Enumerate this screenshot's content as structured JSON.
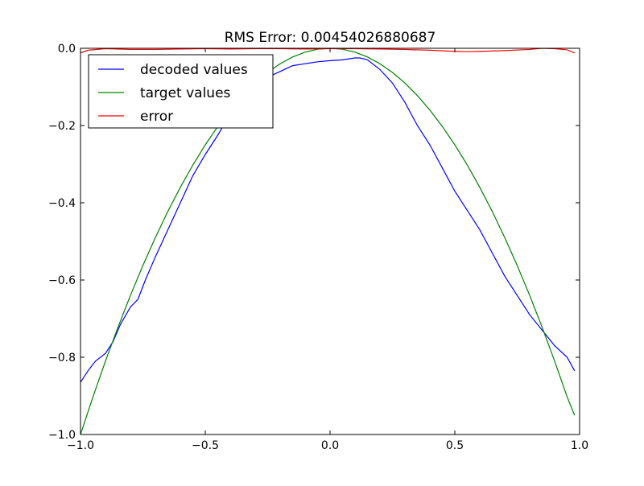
{
  "chart_data": {
    "type": "line",
    "title": "RMS Error: 0.00454026880687",
    "xlabel": "",
    "ylabel": "",
    "xlim": [
      -1.0,
      1.0
    ],
    "ylim": [
      -1.0,
      0.0
    ],
    "grid": false,
    "legend_position": "upper-left",
    "x_ticks": [
      -1.0,
      -0.5,
      0.0,
      0.5,
      1.0
    ],
    "x_tick_labels": [
      "−1.0",
      "−0.5",
      "0.0",
      "0.5",
      "1.0"
    ],
    "y_ticks": [
      0.0,
      -0.2,
      -0.4,
      -0.6,
      -0.8,
      -1.0
    ],
    "y_tick_labels": [
      "0.0",
      "−0.2",
      "−0.4",
      "−0.6",
      "−0.8",
      "−1.0"
    ],
    "series": [
      {
        "name": "decoded values",
        "color": "#0000ff",
        "x": [
          -1.0,
          -0.97,
          -0.94,
          -0.9,
          -0.87,
          -0.84,
          -0.8,
          -0.77,
          -0.74,
          -0.7,
          -0.65,
          -0.6,
          -0.55,
          -0.5,
          -0.45,
          -0.4,
          -0.35,
          -0.3,
          -0.25,
          -0.2,
          -0.15,
          -0.1,
          -0.05,
          0.0,
          0.05,
          0.1,
          0.12,
          0.15,
          0.2,
          0.25,
          0.3,
          0.35,
          0.4,
          0.45,
          0.5,
          0.55,
          0.6,
          0.65,
          0.7,
          0.75,
          0.8,
          0.85,
          0.9,
          0.95,
          0.98
        ],
        "y": [
          -0.865,
          -0.835,
          -0.81,
          -0.79,
          -0.76,
          -0.715,
          -0.67,
          -0.65,
          -0.6,
          -0.54,
          -0.47,
          -0.4,
          -0.33,
          -0.275,
          -0.225,
          -0.17,
          -0.125,
          -0.095,
          -0.075,
          -0.06,
          -0.045,
          -0.04,
          -0.035,
          -0.032,
          -0.03,
          -0.025,
          -0.025,
          -0.03,
          -0.055,
          -0.09,
          -0.14,
          -0.2,
          -0.25,
          -0.31,
          -0.37,
          -0.42,
          -0.47,
          -0.53,
          -0.59,
          -0.64,
          -0.69,
          -0.73,
          -0.77,
          -0.8,
          -0.835
        ]
      },
      {
        "name": "target values",
        "color": "#008000",
        "x": [
          -1.0,
          -0.95,
          -0.9,
          -0.85,
          -0.8,
          -0.75,
          -0.7,
          -0.65,
          -0.6,
          -0.55,
          -0.5,
          -0.45,
          -0.4,
          -0.35,
          -0.3,
          -0.25,
          -0.2,
          -0.15,
          -0.1,
          -0.05,
          0.0,
          0.05,
          0.1,
          0.15,
          0.2,
          0.25,
          0.3,
          0.35,
          0.4,
          0.45,
          0.5,
          0.55,
          0.6,
          0.65,
          0.7,
          0.75,
          0.8,
          0.85,
          0.9,
          0.95,
          0.98
        ],
        "y": [
          -1.0,
          -0.9025,
          -0.81,
          -0.7225,
          -0.64,
          -0.5625,
          -0.49,
          -0.4225,
          -0.36,
          -0.3025,
          -0.25,
          -0.2025,
          -0.16,
          -0.1225,
          -0.09,
          -0.0625,
          -0.04,
          -0.0225,
          -0.01,
          -0.0025,
          0.0,
          -0.0025,
          -0.01,
          -0.0225,
          -0.04,
          -0.0625,
          -0.09,
          -0.1225,
          -0.16,
          -0.2025,
          -0.25,
          -0.3025,
          -0.36,
          -0.4225,
          -0.49,
          -0.5625,
          -0.64,
          -0.7225,
          -0.81,
          -0.9025,
          -0.9504
        ]
      },
      {
        "name": "error",
        "color": "#ff0000",
        "x": [
          -1.0,
          -0.97,
          -0.9,
          -0.8,
          -0.7,
          -0.6,
          -0.5,
          -0.4,
          -0.3,
          -0.2,
          -0.1,
          0.0,
          0.1,
          0.2,
          0.3,
          0.4,
          0.5,
          0.55,
          0.6,
          0.7,
          0.8,
          0.85,
          0.9,
          0.95,
          0.98
        ],
        "y": [
          -0.012,
          -0.005,
          -0.001,
          -0.003,
          -0.003,
          -0.002,
          -0.001,
          -0.002,
          -0.001,
          -0.001,
          -0.002,
          -0.001,
          -0.001,
          -0.002,
          -0.003,
          -0.005,
          -0.008,
          -0.009,
          -0.008,
          -0.006,
          -0.003,
          0.0,
          -0.001,
          -0.004,
          -0.012
        ]
      }
    ]
  }
}
